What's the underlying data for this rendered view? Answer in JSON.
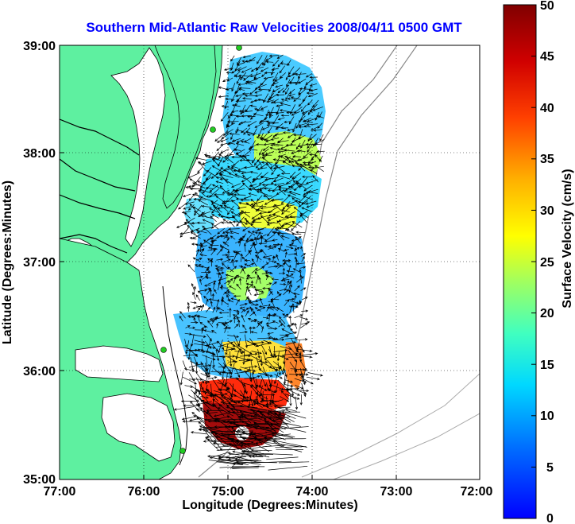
{
  "title": "Southern Mid-Atlantic Raw Velocities 2008/04/11 0500 GMT",
  "x_axis": {
    "label": "Longitude (Degrees:Minutes)",
    "ticks": [
      "77:00",
      "76:00",
      "75:00",
      "74:00",
      "73:00",
      "72:00"
    ]
  },
  "y_axis": {
    "label": "Latitude (Degrees:Minutes)",
    "ticks": [
      "39:00",
      "38:00",
      "37:00",
      "36:00",
      "35:00"
    ]
  },
  "colorbar": {
    "label": "Surface Velocity (cm/s)",
    "ticks": [
      "50",
      "45",
      "40",
      "35",
      "30",
      "25",
      "20",
      "15",
      "10",
      "5",
      "0"
    ],
    "min": 0,
    "max": 50,
    "colormap": [
      "#0000ff",
      "#00a0ff",
      "#00ffff",
      "#80ff80",
      "#ffff00",
      "#ff9000",
      "#ff0000",
      "#800000"
    ]
  },
  "colors": {
    "land": "#5ef0a0",
    "water": "#ffffff",
    "title": "#0000ff",
    "stations": "#22cc22",
    "bathymetry": "#888888"
  },
  "map": {
    "lon_range": [
      -77,
      -72
    ],
    "lat_range": [
      35,
      39
    ],
    "grid": "dotted",
    "stations": [
      {
        "lon": -74.98,
        "lat": 38.98
      },
      {
        "lon": -75.1,
        "lat": 38.22
      },
      {
        "lon": -75.66,
        "lat": 36.2
      },
      {
        "lon": -75.46,
        "lat": 35.23
      }
    ],
    "vectors_drawn": true
  }
}
